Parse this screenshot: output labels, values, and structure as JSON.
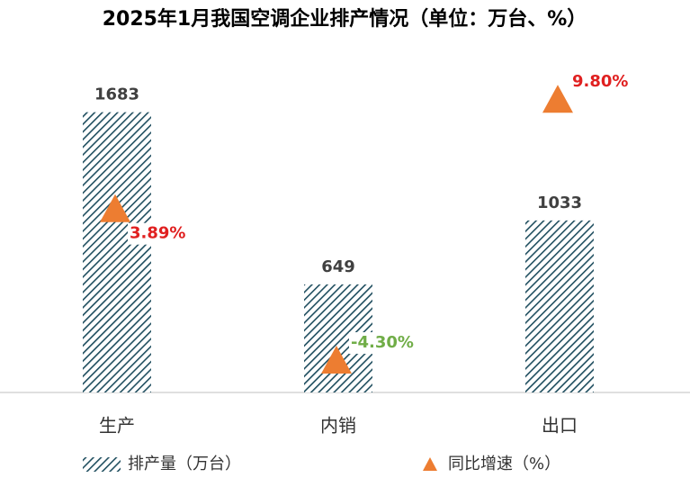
{
  "chart_data": {
    "type": "bar",
    "title": "2025年1月我国空调企业排产情况（单位：万台、%）",
    "categories": [
      "生产",
      "内销",
      "出口"
    ],
    "series": [
      {
        "name": "排产量（万台）",
        "type": "bar",
        "color": "#1f4e5f",
        "hatch": true,
        "values": [
          1683,
          649,
          1033
        ]
      },
      {
        "name": "同比增速（%）",
        "type": "triangle",
        "axis": "y2",
        "color": "#ed7d31",
        "values": [
          3.89,
          -4.3,
          9.8
        ],
        "value_labels": [
          "3.89%",
          "-4.30%",
          "9.80%"
        ],
        "positive_label_color": "#e02020",
        "negative_label_color": "#70ad47"
      }
    ],
    "ylim": [
      0,
      2000
    ],
    "y2lim": [
      -6,
      12
    ],
    "legend": "bottom"
  }
}
